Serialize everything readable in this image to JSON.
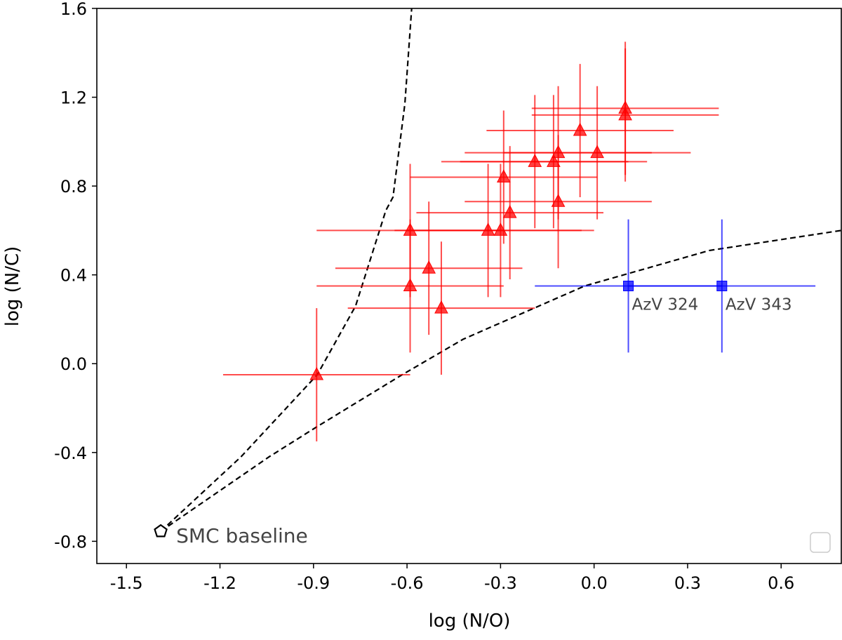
{
  "chart_data": {
    "type": "scatter",
    "xlabel": "log (N/O)",
    "ylabel": "log (N/C)",
    "xlim": [
      -1.595,
      0.793
    ],
    "ylim": [
      -0.9,
      1.6
    ],
    "xticks": [
      "-1.5",
      "-1.2",
      "-0.9",
      "-0.6",
      "-0.3",
      "0.0",
      "0.3",
      "0.6"
    ],
    "yticks": [
      "-0.8",
      "-0.4",
      "0.0",
      "0.4",
      "0.8",
      "1.2",
      "1.6"
    ],
    "grid": false,
    "legend": {
      "placement": "bottom-right",
      "entries": []
    },
    "colors": {
      "red_points": "#ff0000",
      "blue_points": "#0000ff",
      "curves": "#000000",
      "annotation": "#444444"
    },
    "series": [
      {
        "marker": "triangle",
        "color": "#ff0000",
        "points": [
          {
            "x": -0.89,
            "y": -0.05,
            "xerr": 0.3,
            "yerr": 0.3
          },
          {
            "x": -0.59,
            "y": 0.35,
            "xerr": 0.3,
            "yerr": 0.3
          },
          {
            "x": -0.59,
            "y": 0.6,
            "xerr": 0.3,
            "yerr": 0.3
          },
          {
            "x": -0.53,
            "y": 0.43,
            "xerr": 0.3,
            "yerr": 0.3
          },
          {
            "x": -0.49,
            "y": 0.25,
            "xerr": 0.3,
            "yerr": 0.3
          },
          {
            "x": -0.34,
            "y": 0.6,
            "xerr": 0.3,
            "yerr": 0.3
          },
          {
            "x": -0.3,
            "y": 0.6,
            "xerr": 0.3,
            "yerr": 0.3
          },
          {
            "x": -0.29,
            "y": 0.84,
            "xerr": 0.3,
            "yerr": 0.3
          },
          {
            "x": -0.27,
            "y": 0.68,
            "xerr": 0.3,
            "yerr": 0.3
          },
          {
            "x": -0.19,
            "y": 0.91,
            "xerr": 0.3,
            "yerr": 0.3
          },
          {
            "x": -0.13,
            "y": 0.91,
            "xerr": 0.3,
            "yerr": 0.3
          },
          {
            "x": -0.115,
            "y": 0.95,
            "xerr": 0.3,
            "yerr": 0.3
          },
          {
            "x": -0.115,
            "y": 0.73,
            "xerr": 0.3,
            "yerr": 0.3
          },
          {
            "x": -0.045,
            "y": 1.05,
            "xerr": 0.3,
            "yerr": 0.3
          },
          {
            "x": 0.01,
            "y": 0.95,
            "xerr": 0.3,
            "yerr": 0.3
          },
          {
            "x": 0.1,
            "y": 1.15,
            "xerr": 0.3,
            "yerr": 0.3
          },
          {
            "x": 0.1,
            "y": 1.12,
            "xerr": 0.3,
            "yerr": 0.3
          }
        ]
      },
      {
        "marker": "square",
        "color": "#0000ff",
        "points": [
          {
            "x": 0.11,
            "y": 0.35,
            "xerr": 0.3,
            "yerr": 0.3,
            "label": "AzV 324"
          },
          {
            "x": 0.41,
            "y": 0.35,
            "xerr": 0.3,
            "yerr": 0.3,
            "label": "AzV 343"
          }
        ]
      }
    ],
    "baseline": {
      "x": -1.39,
      "y": -0.755,
      "marker": "pentagon",
      "label": "SMC baseline"
    },
    "curves": [
      {
        "style": "dashed",
        "points": [
          [
            -1.39,
            -0.755
          ],
          [
            -1.133,
            -0.42
          ],
          [
            -0.888,
            -0.05
          ],
          [
            -0.765,
            0.26
          ],
          [
            -0.668,
            0.69
          ],
          [
            -0.645,
            0.75
          ],
          [
            -0.607,
            1.17
          ],
          [
            -0.585,
            1.6
          ]
        ]
      },
      {
        "style": "dashed",
        "points": [
          [
            -1.39,
            -0.755
          ],
          [
            -1.043,
            -0.42
          ],
          [
            -0.89,
            -0.285
          ],
          [
            -0.616,
            -0.05
          ],
          [
            -0.42,
            0.11
          ],
          [
            -0.03,
            0.35
          ],
          [
            0.37,
            0.51
          ],
          [
            0.793,
            0.6
          ]
        ]
      }
    ]
  }
}
